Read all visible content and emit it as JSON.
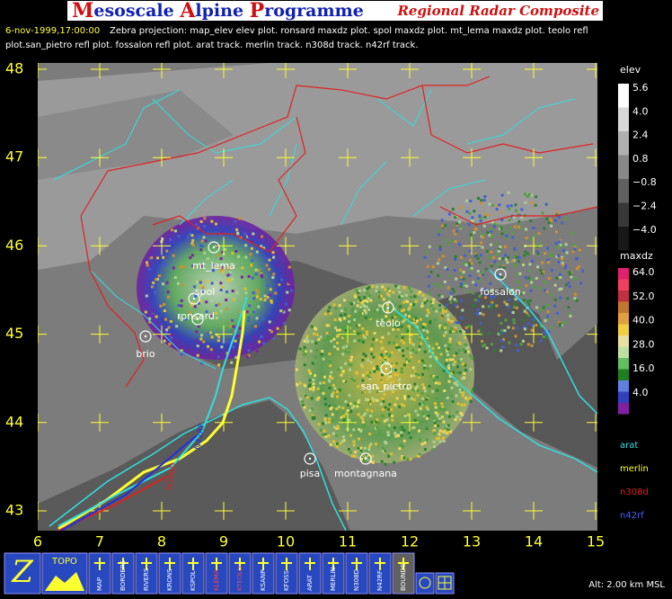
{
  "header": {
    "title_parts": [
      "M",
      "esoscale ",
      "A",
      "lpine ",
      "P",
      "rogramme"
    ],
    "subtitle": "Regional Radar Composite"
  },
  "info": {
    "timestamp": "6-nov-1999,17:00:00",
    "line1": "Zebra projection: map_elev elev plot. ronsard maxdz plot. spol maxdz plot. mt_lema maxdz plot. teolo refl",
    "line2": "plot.san_pietro refl plot. fossalon refl plot. arat track. merlin track. n308d track. n42rf track."
  },
  "map": {
    "lat_labels": [
      48,
      47,
      46,
      45,
      44,
      43
    ],
    "lon_labels": [
      6,
      7,
      8,
      9,
      10,
      11,
      12,
      13,
      14,
      15
    ],
    "stations": [
      "mt_lema",
      "spol",
      "ronsard",
      "brio",
      "teolo",
      "san_pietro",
      "fossalon",
      "pisa",
      "montagnana"
    ],
    "aircraft_labels": [
      "N42RF",
      "N308D"
    ]
  },
  "legend": {
    "elev": {
      "title": "elev",
      "labels": [
        "5.6",
        "4.0",
        "2.4",
        "0.8",
        "−0.8",
        "−2.4",
        "−4.0"
      ]
    },
    "maxdz": {
      "title": "maxdz",
      "labels": [
        "64.0",
        "52.0",
        "40.0",
        "28.0",
        "16.0",
        "4.0"
      ]
    },
    "tracks": [
      "arat",
      "merlin",
      "n308d",
      "n42rf"
    ]
  },
  "toolbar": {
    "buttons": [
      "Z",
      "TOPO",
      "MAP",
      "BORDERS",
      "RIVERS",
      "KRONS",
      "KSPOL",
      "KLEMA",
      "KTEOLO",
      "KSANP",
      "KFOSS",
      "ARAT",
      "MERLIN",
      "N308D",
      "N42RF",
      "BOUNDS"
    ]
  },
  "status": {
    "altitude": "Alt: 2.00 km MSL"
  }
}
